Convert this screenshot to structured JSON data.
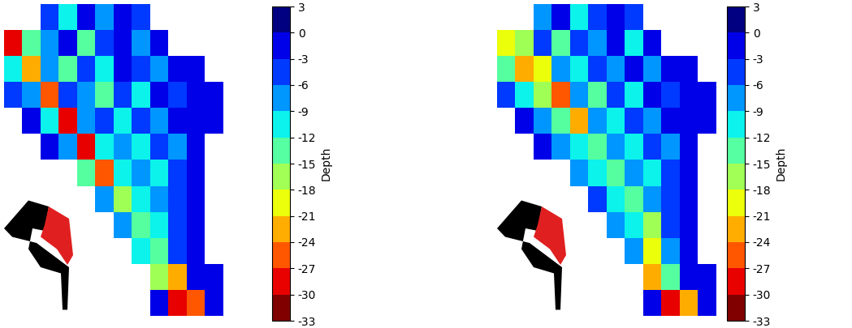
{
  "chart_data": [
    {
      "type": "heatmap",
      "tick_labels": false,
      "colorbar_label": "Depth",
      "colorbar_range": [
        -33,
        3
      ],
      "colorbar_ticks": [
        3,
        0,
        -3,
        -6,
        -9,
        -12,
        -15,
        -18,
        -21,
        -24,
        -27,
        -30,
        -33
      ],
      "cells": [
        [
          null,
          null,
          -6,
          -12,
          -3,
          -9,
          -3,
          -6,
          null,
          null,
          null,
          null
        ],
        [
          -30,
          -15,
          -9,
          -3,
          -15,
          -6,
          -3,
          -9,
          -3,
          null,
          null,
          null
        ],
        [
          -12,
          -24,
          -9,
          -15,
          -6,
          -12,
          -3,
          -6,
          -9,
          -3,
          -3,
          null
        ],
        [
          -6,
          -9,
          -27,
          -6,
          -9,
          -15,
          -6,
          -12,
          -3,
          -6,
          -3,
          -3
        ],
        [
          null,
          -3,
          -12,
          -30,
          -9,
          -6,
          -12,
          -6,
          -9,
          -3,
          -3,
          -3
        ],
        [
          null,
          null,
          -3,
          -9,
          -30,
          -12,
          -9,
          -12,
          -6,
          -9,
          -3,
          null
        ],
        [
          null,
          null,
          null,
          null,
          -15,
          -27,
          -12,
          -9,
          -12,
          -6,
          -3,
          null
        ],
        [
          null,
          null,
          null,
          null,
          null,
          -9,
          -18,
          -12,
          -9,
          -6,
          -3,
          null
        ],
        [
          null,
          null,
          null,
          null,
          null,
          null,
          -9,
          -15,
          -12,
          -6,
          -3,
          null
        ],
        [
          null,
          null,
          null,
          null,
          null,
          null,
          null,
          -12,
          -15,
          -6,
          -3,
          null
        ],
        [
          null,
          null,
          null,
          null,
          null,
          null,
          null,
          null,
          -18,
          -24,
          -3,
          -3
        ],
        [
          null,
          null,
          null,
          null,
          null,
          null,
          null,
          null,
          -3,
          -30,
          -27,
          -3
        ]
      ]
    },
    {
      "type": "heatmap",
      "tick_labels": false,
      "colorbar_label": "Depth",
      "colorbar_range": [
        -33,
        3
      ],
      "colorbar_ticks": [
        3,
        0,
        -3,
        -6,
        -9,
        -12,
        -15,
        -18,
        -21,
        -24,
        -27,
        -30,
        -33
      ],
      "cells": [
        [
          null,
          null,
          -9,
          -3,
          -12,
          -6,
          -3,
          -6,
          null,
          null,
          null,
          null
        ],
        [
          -21,
          -18,
          -6,
          -15,
          -6,
          -9,
          -3,
          -12,
          -3,
          null,
          null,
          null
        ],
        [
          -15,
          -24,
          -21,
          -9,
          -12,
          -6,
          -9,
          -3,
          -9,
          -3,
          -3,
          null
        ],
        [
          -6,
          -12,
          -18,
          -27,
          -9,
          -15,
          -6,
          -12,
          -3,
          -6,
          -3,
          -3
        ],
        [
          null,
          -3,
          -9,
          -15,
          -24,
          -9,
          -12,
          -6,
          -9,
          -3,
          -3,
          -3
        ],
        [
          null,
          null,
          -3,
          -9,
          -12,
          -15,
          -9,
          -12,
          -6,
          -9,
          -3,
          null
        ],
        [
          null,
          null,
          null,
          null,
          -9,
          -12,
          -15,
          -9,
          -12,
          -6,
          -3,
          null
        ],
        [
          null,
          null,
          null,
          null,
          null,
          -6,
          -12,
          -15,
          -9,
          -6,
          -3,
          null
        ],
        [
          null,
          null,
          null,
          null,
          null,
          null,
          -9,
          -12,
          -18,
          -6,
          -3,
          null
        ],
        [
          null,
          null,
          null,
          null,
          null,
          null,
          null,
          -9,
          -21,
          -9,
          -3,
          null
        ],
        [
          null,
          null,
          null,
          null,
          null,
          null,
          null,
          null,
          -24,
          -15,
          -3,
          -3
        ],
        [
          null,
          null,
          null,
          null,
          null,
          null,
          null,
          null,
          -3,
          -30,
          -24,
          -3
        ]
      ]
    }
  ]
}
